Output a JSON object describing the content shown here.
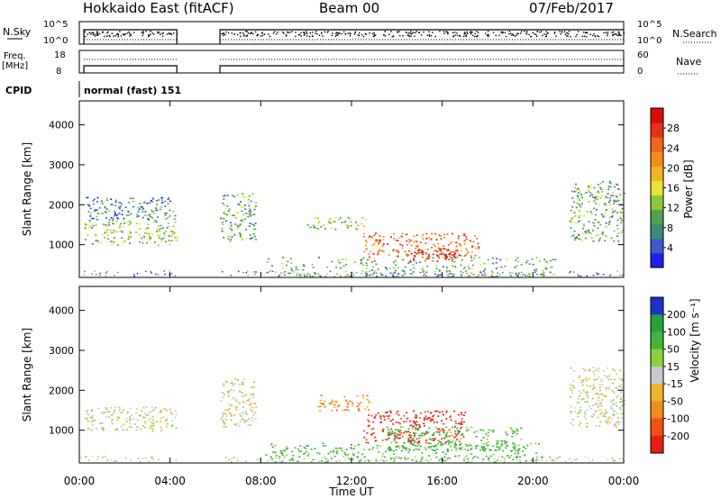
{
  "header": {
    "station": "Hokkaido East (fitACF)",
    "beam": "Beam 00",
    "date": "07/Feb/2017"
  },
  "status_panel": {
    "nsky_label": "N.Sky",
    "nsky_ticks": [
      "10^5",
      "10^0"
    ],
    "nsearch_label": "N.Search",
    "nsearch_ticks": [
      "10^5",
      "10^0"
    ],
    "freq_label_line1": "Freq.",
    "freq_label_line2": "[MHz]",
    "freq_ticks": [
      "18",
      "8"
    ],
    "nave_label": "Nave",
    "nave_ticks": [
      "60",
      "0"
    ],
    "cpid_label": "CPID",
    "cpid_value": "normal (fast) 151"
  },
  "x_axis": {
    "title": "Time UT",
    "ticks": [
      "00:00",
      "04:00",
      "08:00",
      "12:00",
      "16:00",
      "20:00",
      "00:00"
    ]
  },
  "power_panel": {
    "ylabel": "Slant Range [km]",
    "yticks": [
      "1000",
      "2000",
      "3000",
      "4000"
    ],
    "colorbar_label": "Power [dB]",
    "colorbar_ticks": [
      "4",
      "8",
      "12",
      "16",
      "20",
      "24",
      "28"
    ],
    "colors": [
      "#1e1ee6",
      "#3c5ac8",
      "#3c8c78",
      "#50a050",
      "#8cc83c",
      "#e6e632",
      "#f0b428",
      "#f08c1e",
      "#f0641e",
      "#e63214",
      "#dc0a0a"
    ]
  },
  "velocity_panel": {
    "ylabel": "Slant Range [km]",
    "yticks": [
      "1000",
      "2000",
      "3000",
      "4000"
    ],
    "colorbar_label": "Velocity [m s⁻¹]",
    "colorbar_ticks": [
      "200",
      "100",
      "50",
      "15",
      "-15",
      "-50",
      "-100",
      "-200"
    ],
    "colors": [
      "#1e32c8",
      "#28a03c",
      "#46b43c",
      "#8cd23c",
      "#c8c8c8",
      "#f0b428",
      "#f08c1e",
      "#f05014",
      "#e61e14"
    ]
  },
  "chart_data": [
    {
      "type": "heatmap",
      "title": "Power [dB]",
      "xlabel": "Time UT",
      "ylabel": "Slant Range [km]",
      "xlim": [
        "00:00",
        "24:00"
      ],
      "ylim": [
        180,
        4600
      ],
      "colorbar_ticks": [
        4,
        8,
        12,
        16,
        20,
        24,
        28
      ],
      "data_gaps_hours": [
        [
          4.3,
          6.2
        ]
      ],
      "echo_regions": [
        {
          "t_start": 0.2,
          "t_end": 4.3,
          "range_min": 1000,
          "range_max": 1600,
          "power_db": 10
        },
        {
          "t_start": 0.3,
          "t_end": 4.2,
          "range_min": 1600,
          "range_max": 2200,
          "power_db": 6
        },
        {
          "t_start": 6.2,
          "t_end": 7.8,
          "range_min": 1100,
          "range_max": 2300,
          "power_db": 8
        },
        {
          "t_start": 10.0,
          "t_end": 12.6,
          "range_min": 1400,
          "range_max": 1700,
          "power_db": 12
        },
        {
          "t_start": 12.5,
          "t_end": 17.6,
          "range_min": 700,
          "range_max": 1300,
          "power_db": 22
        },
        {
          "t_start": 14.5,
          "t_end": 16.8,
          "range_min": 600,
          "range_max": 900,
          "power_db": 28
        },
        {
          "t_start": 8.2,
          "t_end": 21.0,
          "range_min": 200,
          "range_max": 700,
          "power_db": 8
        },
        {
          "t_start": 21.6,
          "t_end": 24.0,
          "range_min": 1100,
          "range_max": 2600,
          "power_db": 8
        }
      ]
    },
    {
      "type": "heatmap",
      "title": "Velocity [m s⁻¹]",
      "xlabel": "Time UT",
      "ylabel": "Slant Range [km]",
      "xlim": [
        "00:00",
        "24:00"
      ],
      "ylim": [
        180,
        4600
      ],
      "colorbar_ticks": [
        200,
        100,
        50,
        15,
        -15,
        -50,
        -100,
        -200
      ],
      "data_gaps_hours": [
        [
          4.3,
          6.2
        ]
      ],
      "echo_regions": [
        {
          "t_start": 0.2,
          "t_end": 4.3,
          "range_min": 1000,
          "range_max": 1600,
          "velocity": 0
        },
        {
          "t_start": 6.2,
          "t_end": 7.8,
          "range_min": 1100,
          "range_max": 2300,
          "velocity": 0
        },
        {
          "t_start": 10.5,
          "t_end": 12.8,
          "range_min": 1500,
          "range_max": 1900,
          "velocity": -60
        },
        {
          "t_start": 12.5,
          "t_end": 17.0,
          "range_min": 700,
          "range_max": 1500,
          "velocity": -150
        },
        {
          "t_start": 13.5,
          "t_end": 19.5,
          "range_min": 500,
          "range_max": 1100,
          "velocity": 40
        },
        {
          "t_start": 8.2,
          "t_end": 20.5,
          "range_min": 200,
          "range_max": 700,
          "velocity": 30
        },
        {
          "t_start": 21.6,
          "t_end": 24.0,
          "range_min": 1100,
          "range_max": 2600,
          "velocity": 0
        }
      ]
    }
  ]
}
